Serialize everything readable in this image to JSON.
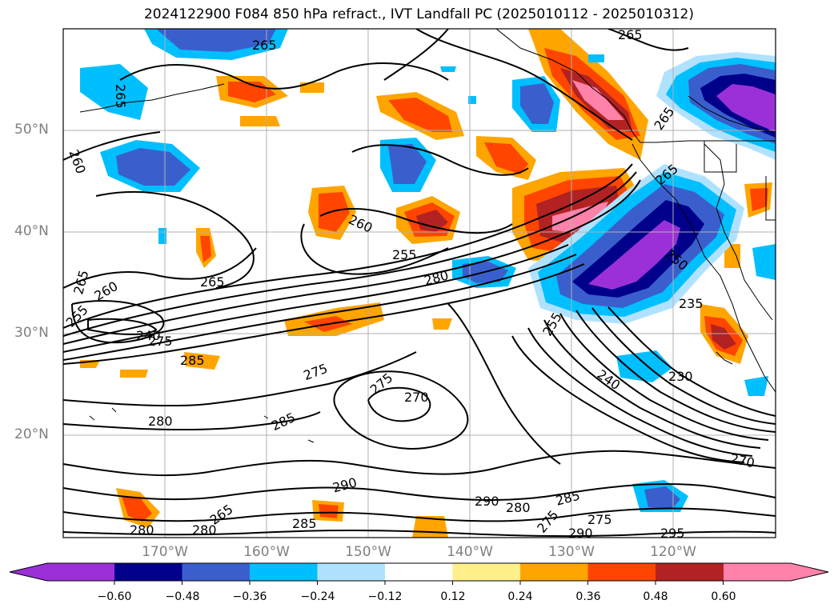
{
  "title": "2024122900 F084 850 hPa refract., IVT Landfall PC (2025010112 - 2025010312)",
  "latitude_labels": [
    "50°N",
    "40°N",
    "30°N",
    "20°N"
  ],
  "longitude_labels": [
    "170°W",
    "160°W",
    "150°W",
    "140°W",
    "130°W",
    "120°W"
  ],
  "contour_labels": [
    "265",
    "265",
    "265",
    "260",
    "265",
    "265",
    "265",
    "260",
    "255",
    "260",
    "255",
    "280",
    "265",
    "240",
    "275",
    "285",
    "250",
    "235",
    "255",
    "275",
    "275",
    "270",
    "240",
    "230",
    "280",
    "285",
    "290",
    "290",
    "280",
    "285",
    "275",
    "275",
    "280",
    "280",
    "285",
    "290",
    "295",
    "270",
    "265"
  ],
  "colorbar": {
    "tick_labels": [
      "−0.60",
      "−0.48",
      "−0.36",
      "−0.24",
      "−0.12",
      "0.12",
      "0.24",
      "0.36",
      "0.48",
      "0.60"
    ],
    "colors": [
      "#9b30d8",
      "#00008b",
      "#3a5fcd",
      "#00bfff",
      "#b0e2ff",
      "#ffffff",
      "#fff08c",
      "#ffa500",
      "#ff4500",
      "#b22222",
      "#ff82ab"
    ]
  }
}
